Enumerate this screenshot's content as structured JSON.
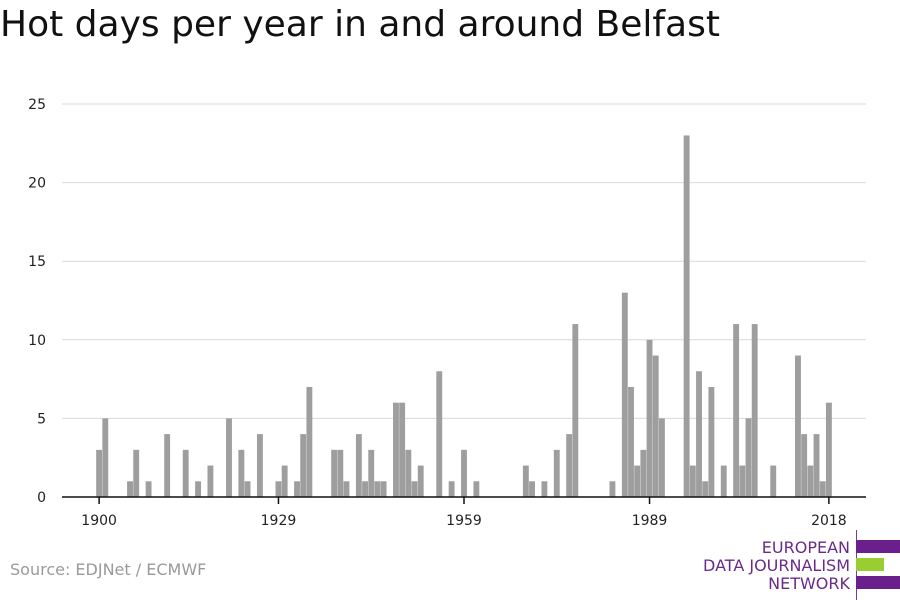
{
  "title": "Hot days per year in and around Belfast",
  "source": "Source: EDJNet / ECMWF",
  "logo": {
    "lines": [
      "EUROPEAN",
      "DATA JOURNALISM",
      "NETWORK"
    ],
    "colors": [
      "#6a1f8c",
      "#9acd32",
      "#6a1f8c"
    ]
  },
  "colors": {
    "bar": "#9e9e9e",
    "grid": "#d9d9d9",
    "axis": "#111111",
    "text": "#222222"
  },
  "chart_data": {
    "type": "bar",
    "xlabel": "",
    "ylabel": "",
    "ylim": [
      0,
      25
    ],
    "yticks": [
      0,
      5,
      10,
      15,
      20,
      25
    ],
    "xticks": [
      1900,
      1929,
      1959,
      1989,
      2018
    ],
    "xlim": [
      1894,
      2024
    ],
    "grid": true,
    "series": [
      {
        "x": [
          1900,
          1901,
          1905,
          1906,
          1908,
          1911,
          1914,
          1916,
          1918,
          1921,
          1923,
          1924,
          1926,
          1929,
          1930,
          1932,
          1933,
          1934,
          1938,
          1939,
          1940,
          1942,
          1943,
          1944,
          1945,
          1946,
          1948,
          1949,
          1950,
          1951,
          1952,
          1955,
          1957,
          1959,
          1961,
          1969,
          1970,
          1972,
          1974,
          1976,
          1977,
          1983,
          1985,
          1986,
          1987,
          1988,
          1989,
          1990,
          1991,
          1995,
          1996,
          1997,
          1998,
          1999,
          2001,
          2003,
          2004,
          2005,
          2006,
          2009,
          2013,
          2014,
          2015,
          2016,
          2017,
          2018
        ],
        "values": [
          3,
          5,
          1,
          3,
          1,
          4,
          3,
          1,
          2,
          5,
          3,
          1,
          4,
          1,
          2,
          1,
          4,
          7,
          3,
          3,
          1,
          4,
          1,
          3,
          1,
          1,
          6,
          6,
          3,
          1,
          2,
          8,
          1,
          3,
          1,
          2,
          1,
          1,
          3,
          4,
          11,
          1,
          13,
          7,
          2,
          3,
          10,
          9,
          5,
          23,
          2,
          8,
          1,
          7,
          2,
          11,
          2,
          5,
          11,
          2,
          9,
          4,
          2,
          4,
          1,
          6
        ]
      }
    ]
  }
}
